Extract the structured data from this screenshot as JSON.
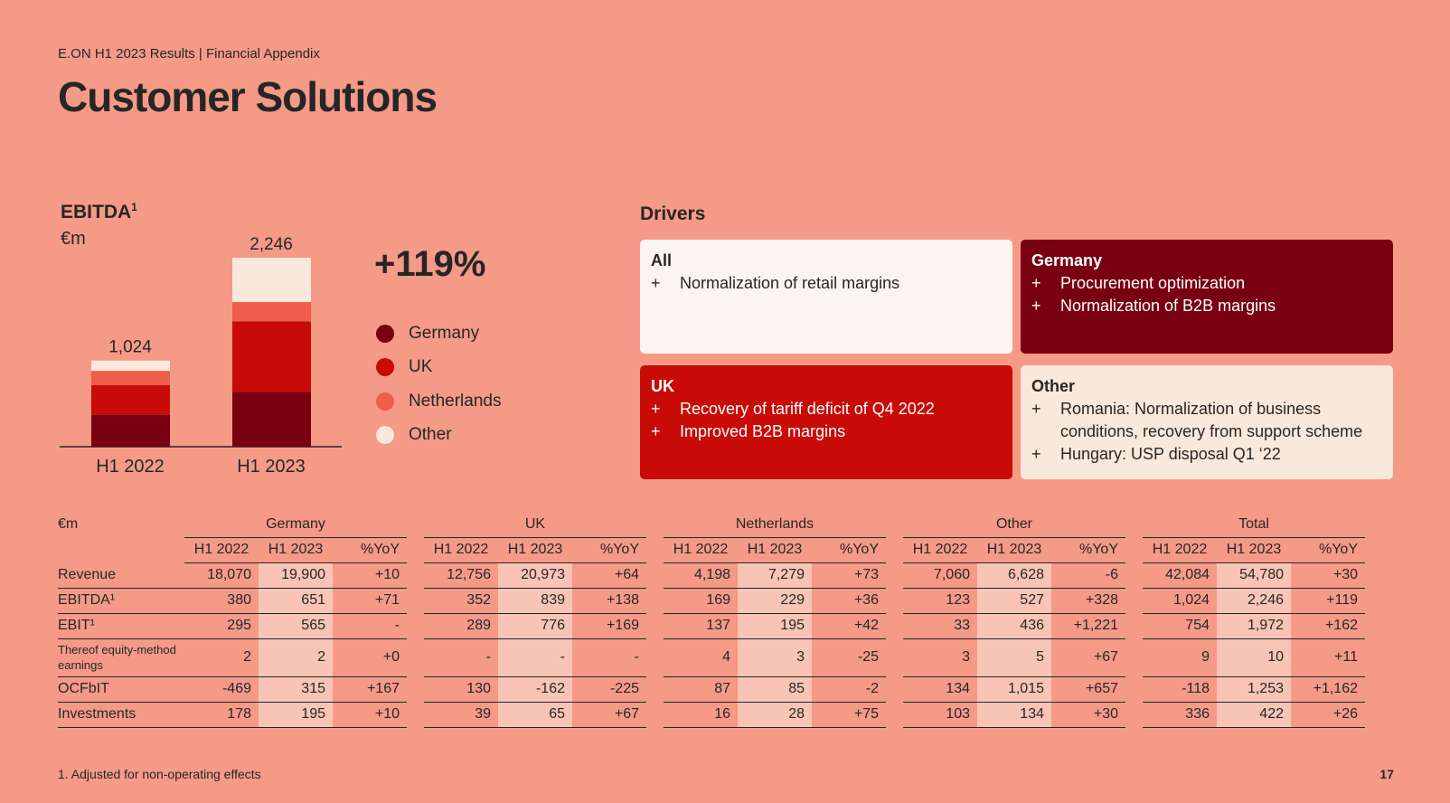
{
  "header": {
    "subtitle": "E.ON H1 2023 Results | Financial Appendix",
    "title": "Customer Solutions"
  },
  "ebitda": {
    "label": "EBITDA",
    "footnote_mark": "1",
    "unit": "€m",
    "growth": "+119%"
  },
  "colors": {
    "germany": "#780010",
    "uk": "#c80b07",
    "netherlands": "#ef5d4b",
    "other": "#fbe8dc",
    "background": "#f59a87"
  },
  "chart_data": {
    "type": "bar",
    "stacked": true,
    "categories": [
      "H1 2022",
      "H1 2023"
    ],
    "totals": [
      "1,024",
      "2,246"
    ],
    "series": [
      {
        "name": "Germany",
        "values": [
          380,
          651
        ],
        "color": "#780010"
      },
      {
        "name": "UK",
        "values": [
          352,
          839
        ],
        "color": "#c80b07"
      },
      {
        "name": "Netherlands",
        "values": [
          169,
          229
        ],
        "color": "#ef5d4b"
      },
      {
        "name": "Other",
        "values": [
          123,
          527
        ],
        "color": "#fbe8dc"
      }
    ],
    "ylim": [
      0,
      2400
    ]
  },
  "legend": [
    {
      "label": "Germany",
      "color": "#780010"
    },
    {
      "label": "UK",
      "color": "#c80b07"
    },
    {
      "label": "Netherlands",
      "color": "#ef5d4b"
    },
    {
      "label": "Other",
      "color": "#fbe8dc"
    }
  ],
  "drivers": {
    "title": "Drivers",
    "bullet": "+",
    "all": {
      "title": "All",
      "items": [
        "Normalization of retail margins"
      ]
    },
    "germany": {
      "title": "Germany",
      "items": [
        "Procurement optimization",
        "Normalization of B2B margins"
      ]
    },
    "uk": {
      "title": "UK",
      "items": [
        "Recovery of tariff deficit of Q4 2022",
        "Improved B2B margins"
      ]
    },
    "other": {
      "title": "Other",
      "items": [
        "Romania: Normalization of business conditions, recovery from support scheme",
        "Hungary: USP disposal Q1 ‘22"
      ]
    }
  },
  "table": {
    "unit": "€m",
    "groups": [
      "Germany",
      "UK",
      "Netherlands",
      "Other",
      "Total"
    ],
    "subheaders": [
      "H1 2022",
      "H1 2023",
      "%YoY"
    ],
    "rows": [
      {
        "label": "Revenue",
        "cells": [
          "18,070",
          "19,900",
          "+10",
          "12,756",
          "20,973",
          "+64",
          "4,198",
          "7,279",
          "+73",
          "7,060",
          "6,628",
          "-6",
          "42,084",
          "54,780",
          "+30"
        ]
      },
      {
        "label": "EBITDA¹",
        "cells": [
          "380",
          "651",
          "+71",
          "352",
          "839",
          "+138",
          "169",
          "229",
          "+36",
          "123",
          "527",
          "+328",
          "1,024",
          "2,246",
          "+119"
        ]
      },
      {
        "label": "EBIT¹",
        "cells": [
          "295",
          "565",
          "-",
          "289",
          "776",
          "+169",
          "137",
          "195",
          "+42",
          "33",
          "436",
          "+1,221",
          "754",
          "1,972",
          "+162"
        ]
      },
      {
        "label": "Thereof equity-method earnings",
        "cells": [
          "2",
          "2",
          "+0",
          "-",
          "-",
          "-",
          "4",
          "3",
          "-25",
          "3",
          "5",
          "+67",
          "9",
          "10",
          "+11"
        ]
      },
      {
        "label": "OCFbIT",
        "cells": [
          "-469",
          "315",
          "+167",
          "130",
          "-162",
          "-225",
          "87",
          "85",
          "-2",
          "134",
          "1,015",
          "+657",
          "-118",
          "1,253",
          "+1,162"
        ]
      },
      {
        "label": "Investments",
        "cells": [
          "178",
          "195",
          "+10",
          "39",
          "65",
          "+67",
          "16",
          "28",
          "+75",
          "103",
          "134",
          "+30",
          "336",
          "422",
          "+26"
        ]
      }
    ]
  },
  "footer": {
    "footnote": "1. Adjusted for non-operating effects",
    "page": "17"
  }
}
